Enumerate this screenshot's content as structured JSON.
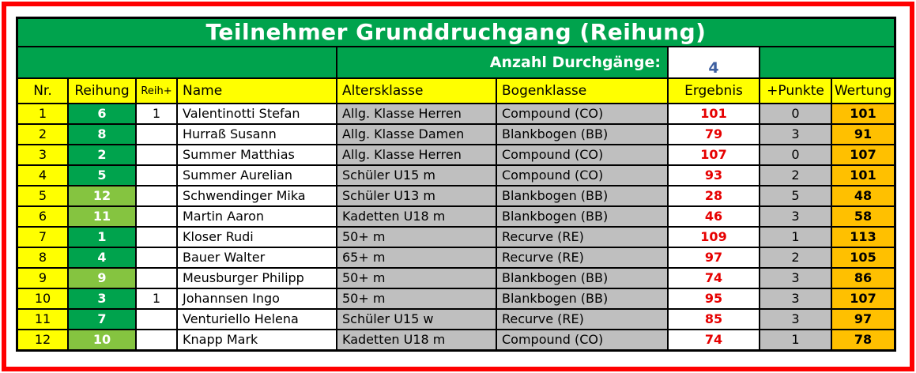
{
  "title": "Teilnehmer Grunddruchgang (Reihung)",
  "info_bar": {
    "label": "Anzahl Durchgänge:",
    "value": "4"
  },
  "columns": [
    "Nr.",
    "Reihung",
    "Reih+",
    "Name",
    "Altersklasse",
    "Bogenklasse",
    "Ergebnis",
    "+Punkte",
    "Wertung"
  ],
  "rows": [
    {
      "nr": "1",
      "reihung": "6",
      "shade": "dark",
      "reih_plus": "1",
      "name": "Valentinotti Stefan",
      "altersklasse": "Allg. Klasse Herren",
      "bogenklasse": "Compound (CO)",
      "ergebnis": "101",
      "punkte": "0",
      "wertung": "101"
    },
    {
      "nr": "2",
      "reihung": "8",
      "shade": "dark",
      "reih_plus": "",
      "name": "Hurraß Susann",
      "altersklasse": "Allg. Klasse Damen",
      "bogenklasse": "Blankbogen (BB)",
      "ergebnis": "79",
      "punkte": "3",
      "wertung": "91"
    },
    {
      "nr": "3",
      "reihung": "2",
      "shade": "dark",
      "reih_plus": "",
      "name": "Summer Matthias",
      "altersklasse": "Allg. Klasse Herren",
      "bogenklasse": "Compound (CO)",
      "ergebnis": "107",
      "punkte": "0",
      "wertung": "107"
    },
    {
      "nr": "4",
      "reihung": "5",
      "shade": "dark",
      "reih_plus": "",
      "name": "Summer Aurelian",
      "altersklasse": "Schüler U15 m",
      "bogenklasse": "Compound (CO)",
      "ergebnis": "93",
      "punkte": "2",
      "wertung": "101"
    },
    {
      "nr": "5",
      "reihung": "12",
      "shade": "light",
      "reih_plus": "",
      "name": "Schwendinger Mika",
      "altersklasse": "Schüler U13 m",
      "bogenklasse": "Blankbogen (BB)",
      "ergebnis": "28",
      "punkte": "5",
      "wertung": "48"
    },
    {
      "nr": "6",
      "reihung": "11",
      "shade": "light",
      "reih_plus": "",
      "name": "Martin Aaron",
      "altersklasse": "Kadetten U18 m",
      "bogenklasse": "Blankbogen (BB)",
      "ergebnis": "46",
      "punkte": "3",
      "wertung": "58"
    },
    {
      "nr": "7",
      "reihung": "1",
      "shade": "dark",
      "reih_plus": "",
      "name": "Kloser Rudi",
      "altersklasse": "50+ m",
      "bogenklasse": "Recurve (RE)",
      "ergebnis": "109",
      "punkte": "1",
      "wertung": "113"
    },
    {
      "nr": "8",
      "reihung": "4",
      "shade": "dark",
      "reih_plus": "",
      "name": "Bauer Walter",
      "altersklasse": "65+ m",
      "bogenklasse": "Recurve (RE)",
      "ergebnis": "97",
      "punkte": "2",
      "wertung": "105"
    },
    {
      "nr": "9",
      "reihung": "9",
      "shade": "light",
      "reih_plus": "",
      "name": "Meusburger Philipp",
      "altersklasse": "50+ m",
      "bogenklasse": "Blankbogen (BB)",
      "ergebnis": "74",
      "punkte": "3",
      "wertung": "86"
    },
    {
      "nr": "10",
      "reihung": "3",
      "shade": "dark",
      "reih_plus": "1",
      "name": "Johannsen Ingo",
      "altersklasse": "50+ m",
      "bogenklasse": "Blankbogen (BB)",
      "ergebnis": "95",
      "punkte": "3",
      "wertung": "107"
    },
    {
      "nr": "11",
      "reihung": "7",
      "shade": "dark",
      "reih_plus": "",
      "name": "Venturiello Helena",
      "altersklasse": "Schüler U15 w",
      "bogenklasse": "Recurve (RE)",
      "ergebnis": "85",
      "punkte": "3",
      "wertung": "97"
    },
    {
      "nr": "12",
      "reihung": "10",
      "shade": "light",
      "reih_plus": "",
      "name": "Knapp Mark",
      "altersklasse": "Kadetten U18 m",
      "bogenklasse": "Compound (CO)",
      "ergebnis": "74",
      "punkte": "1",
      "wertung": "78"
    }
  ],
  "colors": {
    "green": "#00A34D",
    "green_light": "#85C440",
    "yellow": "#FFFF00",
    "gray": "#BFBFBF",
    "orange": "#FFC000",
    "result_red": "#E60000",
    "value_blue": "#3D5FA0",
    "frame_red": "#FF0000"
  }
}
